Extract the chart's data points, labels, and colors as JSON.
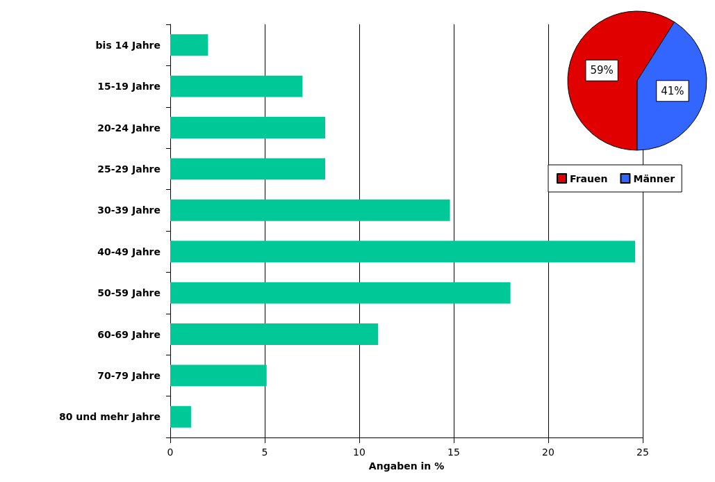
{
  "chart_data": [
    {
      "type": "bar",
      "orientation": "horizontal",
      "xlabel": "Angaben in %",
      "categories": [
        "bis 14 Jahre",
        "15-19 Jahre",
        "20-24 Jahre",
        "25-29 Jahre",
        "30-39 Jahre",
        "40-49 Jahre",
        "50-59 Jahre",
        "60-69 Jahre",
        "70-79 Jahre",
        "80 und mehr Jahre"
      ],
      "values": [
        2,
        7,
        8.2,
        8.2,
        14.8,
        24.6,
        18,
        11,
        5.1,
        1.1
      ],
      "color": "#00c896",
      "xlim": [
        0,
        25
      ],
      "xticks": [
        0,
        5,
        10,
        15,
        20,
        25
      ],
      "grid": "x"
    },
    {
      "type": "pie",
      "categories": [
        "Frauen",
        "Männer"
      ],
      "values": [
        59,
        41
      ],
      "colors": [
        "#e00000",
        "#3366ff"
      ],
      "value_labels": [
        "59%",
        "41%"
      ],
      "legend": "bottom"
    }
  ]
}
